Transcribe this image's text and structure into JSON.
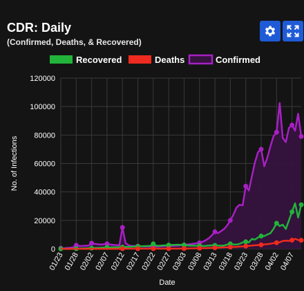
{
  "header": {
    "title": "CDR: Daily",
    "subtitle": "(Confirmed, Deaths, & Recovered)"
  },
  "toolbar": {
    "settings_icon": "gear-icon",
    "fullscreen_icon": "expand-icon",
    "button_color": "#1f5bd6"
  },
  "chart_data": {
    "type": "line",
    "xlabel": "Date",
    "ylabel": "No. of Infections",
    "ylim": [
      0,
      120000
    ],
    "yticks": [
      0,
      20000,
      40000,
      60000,
      80000,
      100000,
      120000
    ],
    "x": [
      "01/23",
      "01/24",
      "01/25",
      "01/26",
      "01/27",
      "01/28",
      "01/29",
      "01/30",
      "01/31",
      "02/01",
      "02/02",
      "02/03",
      "02/04",
      "02/05",
      "02/06",
      "02/07",
      "02/08",
      "02/09",
      "02/10",
      "02/11",
      "02/12",
      "02/13",
      "02/14",
      "02/15",
      "02/16",
      "02/17",
      "02/18",
      "02/19",
      "02/20",
      "02/21",
      "02/22",
      "02/23",
      "02/24",
      "02/25",
      "02/26",
      "02/27",
      "02/28",
      "02/29",
      "03/01",
      "03/02",
      "03/03",
      "03/04",
      "03/05",
      "03/06",
      "03/07",
      "03/08",
      "03/09",
      "03/10",
      "03/11",
      "03/12",
      "03/13",
      "03/14",
      "03/15",
      "03/16",
      "03/17",
      "03/18",
      "03/19",
      "03/20",
      "03/21",
      "03/22",
      "03/23",
      "03/24",
      "03/25",
      "03/26",
      "03/27",
      "03/28",
      "03/29",
      "03/30",
      "03/31",
      "04/01",
      "04/02",
      "04/03",
      "04/04",
      "04/05",
      "04/06",
      "04/07",
      "04/08",
      "04/09",
      "04/10"
    ],
    "xtick_labels": [
      "01/23",
      "01/28",
      "02/02",
      "02/07",
      "02/12",
      "02/17",
      "02/22",
      "02/27",
      "03/03",
      "03/08",
      "03/13",
      "03/18",
      "03/23",
      "03/28",
      "04/02",
      "04/07"
    ],
    "grid": true,
    "legend_position": "top",
    "series": [
      {
        "name": "Recovered",
        "color": "#22b33a",
        "values": [
          0,
          0,
          0,
          0,
          0,
          100,
          200,
          300,
          400,
          500,
          500,
          600,
          700,
          800,
          900,
          1000,
          1000,
          1100,
          1100,
          1200,
          1200,
          1300,
          1400,
          1500,
          1600,
          1700,
          1800,
          1900,
          2000,
          2100,
          3500,
          2200,
          2200,
          2400,
          2500,
          2600,
          2700,
          2800,
          2900,
          2800,
          2600,
          2400,
          2300,
          2200,
          2200,
          2100,
          2000,
          2100,
          2300,
          2500,
          2400,
          2300,
          2200,
          2400,
          3000,
          3500,
          3000,
          3000,
          3500,
          4500,
          5000,
          4500,
          7000,
          6500,
          8000,
          9000,
          9000,
          10000,
          11000,
          14000,
          18000,
          16000,
          17000,
          14000,
          20000,
          26000,
          32000,
          22000,
          31000
        ],
        "markers": [
          0,
          5,
          10,
          15,
          20,
          25,
          30,
          35,
          40,
          45,
          50,
          55,
          60,
          65,
          70,
          75,
          78
        ]
      },
      {
        "name": "Deaths",
        "color": "#ee2b1e",
        "values": [
          0,
          0,
          0,
          0,
          0,
          0,
          0,
          0,
          0,
          0,
          0,
          0,
          0,
          0,
          0,
          0,
          0,
          0,
          0,
          0,
          100,
          100,
          100,
          100,
          100,
          100,
          100,
          100,
          100,
          100,
          100,
          100,
          100,
          100,
          100,
          100,
          100,
          100,
          100,
          200,
          200,
          200,
          300,
          300,
          400,
          400,
          500,
          500,
          600,
          700,
          700,
          800,
          900,
          1000,
          1100,
          1200,
          1300,
          1400,
          1600,
          1700,
          1900,
          2100,
          2300,
          2500,
          2600,
          2800,
          3100,
          3300,
          3600,
          4000,
          4300,
          4600,
          5500,
          5800,
          5600,
          6100,
          7000,
          6200,
          6000
        ],
        "markers": [
          20,
          25,
          30,
          35,
          40,
          45,
          50,
          55,
          60,
          65,
          70,
          75,
          78
        ]
      },
      {
        "name": "Confirmed",
        "color": "#a720c4",
        "fill": "#36123f",
        "values": [
          500,
          400,
          600,
          800,
          1000,
          2500,
          2000,
          2000,
          2200,
          2300,
          4000,
          3500,
          3200,
          3000,
          3200,
          3500,
          3000,
          2800,
          2600,
          2500,
          15000,
          4000,
          2500,
          2000,
          2100,
          1900,
          1800,
          1700,
          1700,
          1600,
          1500,
          1600,
          1700,
          1800,
          1900,
          2000,
          2100,
          2200,
          2300,
          2500,
          2800,
          3000,
          3300,
          3600,
          3900,
          4200,
          5000,
          6000,
          7500,
          9500,
          12000,
          11000,
          12500,
          14000,
          16500,
          20000,
          24000,
          29000,
          31000,
          30500,
          44000,
          41000,
          51000,
          61000,
          68000,
          70000,
          58000,
          64000,
          72000,
          79000,
          82000,
          102500,
          78000,
          75000,
          85000,
          87000,
          83000,
          95000,
          79000
        ],
        "markers": [
          0,
          5,
          10,
          15,
          20,
          25,
          30,
          35,
          40,
          45,
          50,
          55,
          60,
          65,
          70,
          75,
          78
        ]
      }
    ]
  }
}
